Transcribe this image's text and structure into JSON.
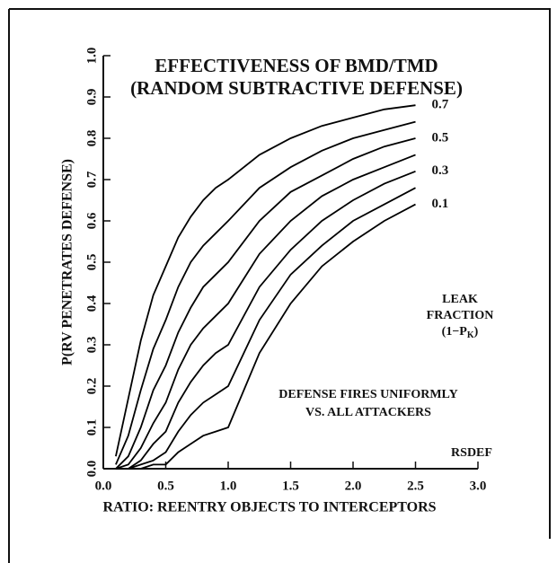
{
  "chart_data": {
    "type": "line",
    "title": [
      "EFFECTIVENESS OF BMD/TMD",
      "(RANDOM SUBTRACTIVE DEFENSE)"
    ],
    "xlabel": "RATIO:  REENTRY OBJECTS TO INTERCEPTORS",
    "ylabel": "P(RV PENETRATES DEFENSE)",
    "x": [
      0.1,
      0.2,
      0.3,
      0.4,
      0.5,
      0.6,
      0.7,
      0.8,
      0.9,
      1.0,
      1.25,
      1.5,
      1.75,
      2.0,
      2.25,
      2.5
    ],
    "series": [
      {
        "name": "0.1",
        "color": "#000000",
        "values": [
          0,
          0,
          0,
          0.01,
          0.01,
          0.04,
          0.06,
          0.08,
          0.09,
          0.1,
          0.28,
          0.4,
          0.49,
          0.55,
          0.6,
          0.64
        ]
      },
      {
        "color": "#000000",
        "values": [
          0,
          0,
          0.01,
          0.02,
          0.04,
          0.09,
          0.13,
          0.16,
          0.18,
          0.2,
          0.36,
          0.47,
          0.54,
          0.6,
          0.64,
          0.68
        ]
      },
      {
        "name": "0.3",
        "color": "#000000",
        "values": [
          0,
          0,
          0.02,
          0.06,
          0.09,
          0.16,
          0.21,
          0.25,
          0.28,
          0.3,
          0.44,
          0.53,
          0.6,
          0.65,
          0.69,
          0.72
        ]
      },
      {
        "color": "#000000",
        "values": [
          0,
          0.01,
          0.05,
          0.11,
          0.16,
          0.24,
          0.3,
          0.34,
          0.37,
          0.4,
          0.52,
          0.6,
          0.66,
          0.7,
          0.73,
          0.76
        ]
      },
      {
        "name": "0.5",
        "color": "#000000",
        "values": [
          0,
          0.03,
          0.1,
          0.19,
          0.25,
          0.33,
          0.39,
          0.44,
          0.47,
          0.5,
          0.6,
          0.67,
          0.71,
          0.75,
          0.78,
          0.8
        ]
      },
      {
        "color": "#000000",
        "values": [
          0.01,
          0.08,
          0.19,
          0.29,
          0.36,
          0.44,
          0.5,
          0.54,
          0.57,
          0.6,
          0.68,
          0.73,
          0.77,
          0.8,
          0.82,
          0.84
        ]
      },
      {
        "name": "0.7",
        "color": "#000000",
        "values": [
          0.03,
          0.17,
          0.31,
          0.42,
          0.49,
          0.56,
          0.61,
          0.65,
          0.68,
          0.7,
          0.76,
          0.8,
          0.83,
          0.85,
          0.87,
          0.88
        ]
      }
    ],
    "xlim": [
      0,
      3.0
    ],
    "ylim": [
      0,
      1.0
    ],
    "xticks": [
      {
        "value": 0,
        "label": "0.0"
      },
      {
        "value": 0.5,
        "label": "0.5"
      },
      {
        "value": 1.0,
        "label": "1.0"
      },
      {
        "value": 1.5,
        "label": "1.5"
      },
      {
        "value": 2.0,
        "label": "2.0"
      },
      {
        "value": 2.5,
        "label": "2.5"
      },
      {
        "value": 3.0,
        "label": "3.0"
      }
    ],
    "yticks": [
      {
        "value": 0,
        "label": "0.0"
      },
      0.1,
      0.2,
      0.3,
      0.4,
      0.5,
      0.6,
      0.7,
      0.8,
      0.9,
      {
        "value": 1.0,
        "label": "1.0"
      }
    ],
    "leak_note": {
      "lines": [
        "LEAK",
        "FRACTION"
      ],
      "formula": [
        "(1−P",
        "K",
        ")"
      ]
    },
    "defense_note": [
      "DEFENSE FIRES UNIFORMLY",
      "VS. ALL ATTACKERS"
    ],
    "code_label": "RSDEF"
  }
}
